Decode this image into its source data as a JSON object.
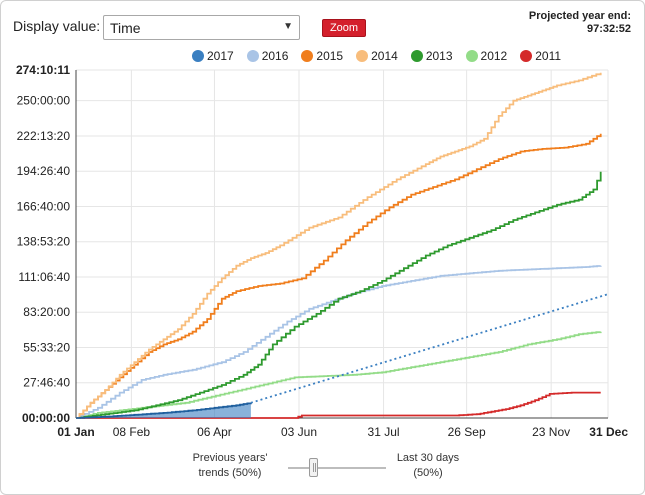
{
  "controls": {
    "display_label": "Display value:",
    "display_select_value": "Time",
    "zoom_label": "Zoom",
    "projected_label": "Projected year end:",
    "projected_value": "97:32:52"
  },
  "slider": {
    "left_label_line1": "Previous years'",
    "left_label_line2": "trends (50%)",
    "right_label_line1": "Last 30 days",
    "right_label_line2": "(50%)",
    "value_percent": 50
  },
  "colors": {
    "2017": "#3a7fc1",
    "2016": "#a9c4e6",
    "2015": "#f07e1d",
    "2014": "#f8bd7c",
    "2013": "#2e9a2e",
    "2012": "#93dc88",
    "2011": "#d42a2a"
  },
  "chart_data": {
    "type": "line",
    "title": "",
    "xlabel": "",
    "ylabel": "",
    "x_unit": "day of year",
    "y_unit": "hours",
    "xlim": [
      0,
      365
    ],
    "ylim": [
      0,
      274.17
    ],
    "x_ticks": [
      {
        "label": "01 Jan",
        "value": 0,
        "bold": true
      },
      {
        "label": "08 Feb",
        "value": 38,
        "bold": false
      },
      {
        "label": "06 Apr",
        "value": 95,
        "bold": false
      },
      {
        "label": "03 Jun",
        "value": 153,
        "bold": false
      },
      {
        "label": "31 Jul",
        "value": 211,
        "bold": false
      },
      {
        "label": "26 Sep",
        "value": 268,
        "bold": false
      },
      {
        "label": "23 Nov",
        "value": 326,
        "bold": false
      },
      {
        "label": "31 Dec",
        "value": 365,
        "bold": true
      }
    ],
    "y_ticks": [
      {
        "label": "00:00:00",
        "value": 0,
        "bold": true
      },
      {
        "label": "27:46:40",
        "value": 27.78,
        "bold": false
      },
      {
        "label": "55:33:20",
        "value": 55.56,
        "bold": false
      },
      {
        "label": "83:20:00",
        "value": 83.33,
        "bold": false
      },
      {
        "label": "111:06:40",
        "value": 111.11,
        "bold": false
      },
      {
        "label": "138:53:20",
        "value": 138.89,
        "bold": false
      },
      {
        "label": "166:40:00",
        "value": 166.67,
        "bold": false
      },
      {
        "label": "194:26:40",
        "value": 194.44,
        "bold": false
      },
      {
        "label": "222:13:20",
        "value": 222.22,
        "bold": false
      },
      {
        "label": "250:00:00",
        "value": 250,
        "bold": false
      },
      {
        "label": "274:10:11",
        "value": 274.17,
        "bold": true
      }
    ],
    "grid": true,
    "legend_position": "top",
    "series": [
      {
        "name": "2017",
        "fill": true,
        "x": [
          0,
          20,
          40,
          60,
          80,
          95,
          110,
          120
        ],
        "y": [
          0,
          1,
          2.5,
          4,
          6,
          8,
          10,
          12
        ]
      },
      {
        "name": "2017 projection",
        "dashed": true,
        "x": [
          120,
          365
        ],
        "y": [
          12,
          97.55
        ]
      },
      {
        "name": "2016",
        "x": [
          0,
          15,
          30,
          45,
          60,
          80,
          100,
          115,
          130,
          145,
          160,
          175,
          190,
          210,
          230,
          250,
          270,
          290,
          310,
          330,
          350,
          360
        ],
        "y": [
          0,
          8,
          20,
          30,
          34,
          38,
          44,
          52,
          64,
          76,
          86,
          92,
          98,
          104,
          108,
          112,
          114,
          116,
          117,
          118,
          119,
          120
        ]
      },
      {
        "name": "2015",
        "x": [
          0,
          10,
          20,
          30,
          40,
          50,
          60,
          70,
          80,
          90,
          100,
          110,
          125,
          140,
          155,
          170,
          185,
          200,
          215,
          230,
          245,
          260,
          275,
          290,
          305,
          320,
          335,
          350,
          360
        ],
        "y": [
          0,
          12,
          22,
          32,
          42,
          52,
          58,
          62,
          68,
          78,
          94,
          100,
          104,
          106,
          110,
          124,
          140,
          154,
          166,
          176,
          182,
          188,
          196,
          204,
          210,
          212,
          213,
          216,
          224
        ]
      },
      {
        "name": "2014",
        "x": [
          0,
          10,
          20,
          30,
          40,
          50,
          60,
          70,
          80,
          90,
          100,
          110,
          120,
          130,
          140,
          160,
          180,
          200,
          220,
          240,
          250,
          260,
          270,
          280,
          290,
          300,
          310,
          320,
          330,
          345,
          360
        ],
        "y": [
          0,
          12,
          22,
          34,
          44,
          54,
          62,
          70,
          82,
          98,
          110,
          120,
          126,
          130,
          136,
          150,
          158,
          174,
          188,
          200,
          206,
          210,
          214,
          220,
          238,
          250,
          254,
          258,
          262,
          266,
          272
        ]
      },
      {
        "name": "2013",
        "x": [
          0,
          20,
          40,
          55,
          70,
          85,
          100,
          115,
          125,
          135,
          150,
          165,
          180,
          195,
          210,
          225,
          240,
          255,
          270,
          285,
          300,
          315,
          330,
          345,
          355,
          360
        ],
        "y": [
          0,
          3,
          6,
          10,
          14,
          20,
          26,
          34,
          42,
          58,
          72,
          82,
          94,
          100,
          108,
          118,
          128,
          136,
          142,
          148,
          156,
          162,
          168,
          172,
          180,
          194
        ]
      },
      {
        "name": "2012",
        "x": [
          0,
          15,
          30,
          45,
          60,
          75,
          90,
          105,
          120,
          135,
          150,
          170,
          190,
          210,
          230,
          250,
          270,
          290,
          310,
          330,
          345,
          360
        ],
        "y": [
          0,
          4,
          6,
          8,
          10,
          12,
          16,
          20,
          24,
          28,
          32,
          33,
          34,
          36,
          40,
          44,
          48,
          52,
          58,
          62,
          66,
          68
        ]
      },
      {
        "name": "2011",
        "x": [
          0,
          100,
          150,
          155,
          200,
          260,
          275,
          285,
          295,
          305,
          315,
          325,
          340,
          360
        ],
        "y": [
          0,
          0,
          0,
          2,
          2,
          2,
          3,
          5,
          7,
          10,
          14,
          19,
          20,
          20
        ]
      }
    ]
  }
}
